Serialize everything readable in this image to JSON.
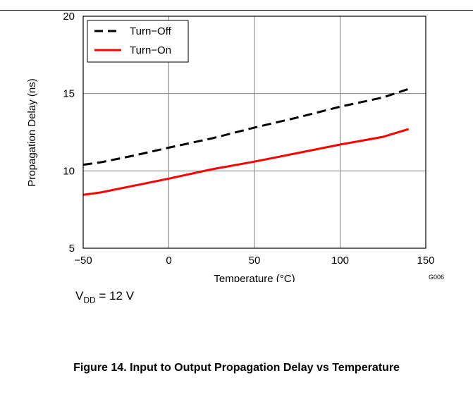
{
  "chart_data": {
    "type": "line",
    "xlabel": "Temperature (°C)",
    "ylabel": "Propagation Delay (ns)",
    "xlim": [
      -50,
      150
    ],
    "ylim": [
      5,
      20
    ],
    "xticks": [
      -50,
      0,
      50,
      100,
      150
    ],
    "yticks": [
      5,
      10,
      15,
      20
    ],
    "xtick_labels": [
      "−50",
      "0",
      "50",
      "100",
      "150"
    ],
    "ytick_labels": [
      "5",
      "10",
      "15",
      "20"
    ],
    "grid": true,
    "legend_position": "top-left",
    "graph_id": "G006",
    "series": [
      {
        "name": "Turn−Off",
        "color": "#000000",
        "style": "dashed",
        "x": [
          -50,
          -40,
          -20,
          0,
          25,
          50,
          75,
          100,
          125,
          140
        ],
        "y": [
          10.4,
          10.55,
          11.0,
          11.5,
          12.1,
          12.8,
          13.45,
          14.15,
          14.75,
          15.3
        ]
      },
      {
        "name": "Turn−On",
        "color": "#ff0000",
        "style": "solid",
        "x": [
          -50,
          -40,
          -20,
          0,
          25,
          50,
          75,
          100,
          125,
          140
        ],
        "y": [
          8.45,
          8.6,
          9.05,
          9.5,
          10.1,
          10.6,
          11.15,
          11.7,
          12.2,
          12.7
        ]
      }
    ]
  },
  "condition": {
    "prefix": "V",
    "subscript": "DD",
    "suffix": " = 12 V"
  },
  "caption": "Figure 14. Input to Output Propagation Delay vs Temperature"
}
